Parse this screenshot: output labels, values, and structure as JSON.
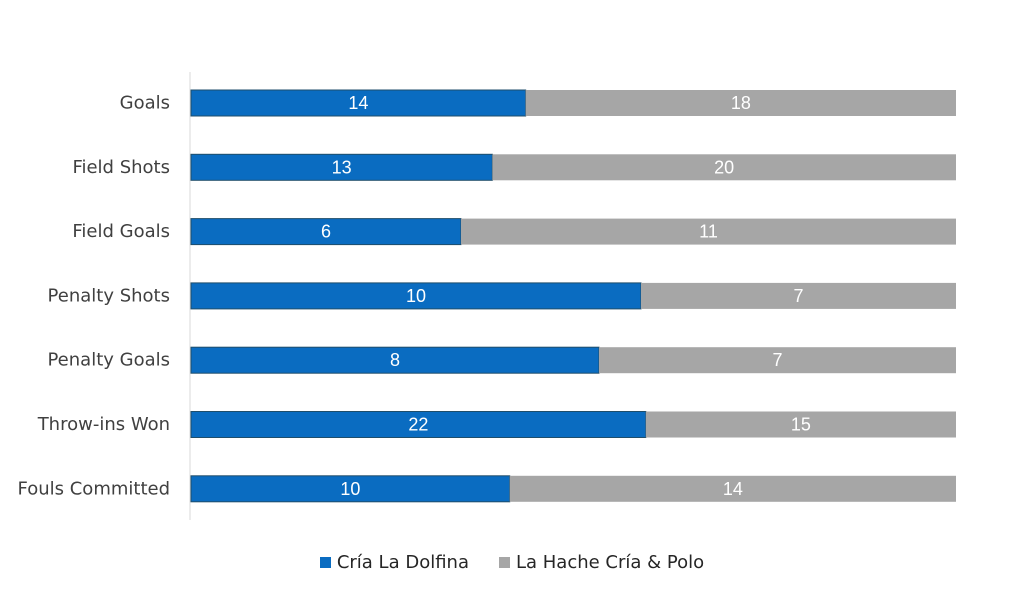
{
  "chart_data": {
    "type": "bar",
    "orientation": "horizontal",
    "stacking": "percent",
    "categories": [
      "Goals",
      "Field Shots",
      "Field Goals",
      "Penalty Shots",
      "Penalty Goals",
      "Throw-ins Won",
      "Fouls Committed"
    ],
    "series": [
      {
        "name": "Cría La Dolfina",
        "values": [
          14,
          13,
          6,
          10,
          8,
          22,
          10
        ],
        "color": "#0A6CC1"
      },
      {
        "name": "La Hache Cría & Polo",
        "values": [
          18,
          20,
          11,
          7,
          7,
          15,
          14
        ],
        "color": "#A6A6A6"
      }
    ],
    "title": "",
    "xlabel": "",
    "ylabel": "",
    "legend_position": "bottom",
    "grid": false,
    "data_labels": true
  }
}
